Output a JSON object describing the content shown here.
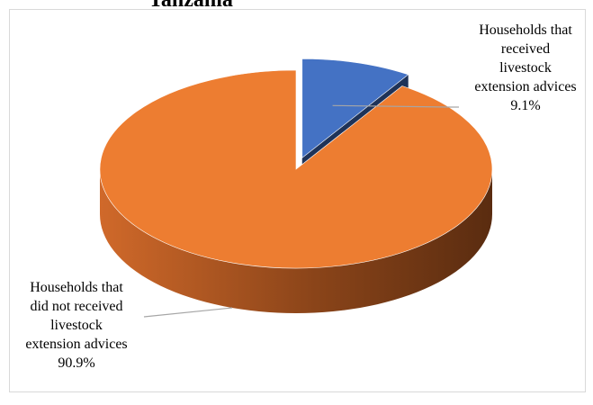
{
  "chart_data": {
    "type": "pie",
    "title": "Tanzania",
    "categories": [
      "Households that received livestock extension advices",
      "Households that did not received livestock extension advices"
    ],
    "values": [
      9.1,
      90.9
    ],
    "unit": "%",
    "colors": [
      "#4472C4",
      "#ED7D31"
    ],
    "exploded": [
      true,
      false
    ],
    "labels": [
      {
        "lines": [
          "Households that",
          "received",
          "livestock",
          "extension advices"
        ],
        "value_text": "9.1%"
      },
      {
        "lines": [
          "Households that",
          "did not received",
          "livestock",
          "extension advices"
        ],
        "value_text": "90.9%"
      }
    ],
    "legend": "none",
    "style": "3d"
  }
}
